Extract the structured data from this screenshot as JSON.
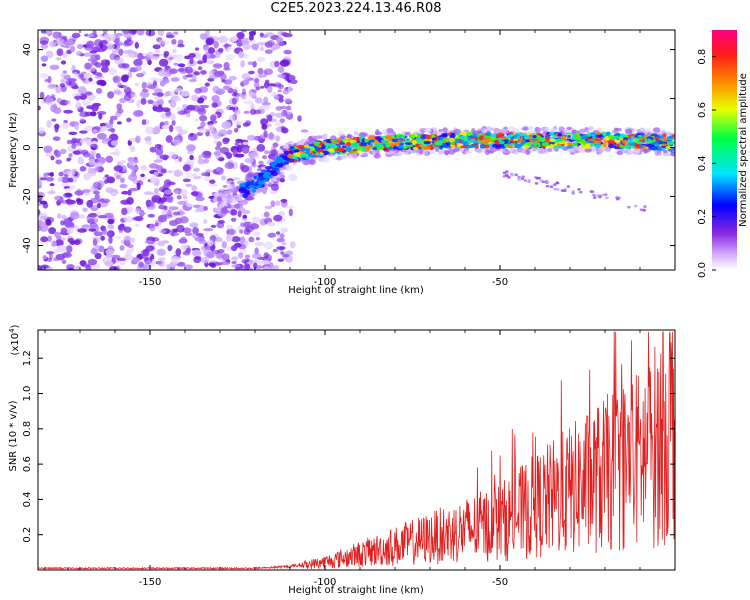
{
  "figure": {
    "title": "C2E5.2023.224.13.46.R08"
  },
  "chart_data": [
    {
      "type": "heatmap",
      "xlabel": "Height of straight line (km)",
      "ylabel": "Frequency (Hz)",
      "xlim": [
        -182,
        0
      ],
      "ylim": [
        -50,
        48
      ],
      "x_ticks": [
        -150,
        -100,
        -50
      ],
      "y_ticks": [
        -40,
        -20,
        0,
        20,
        40
      ],
      "colorscale": "rainbow",
      "colorbar": {
        "label": "Normalized spectral amplitude",
        "range": [
          0,
          0.9
        ],
        "ticks": [
          0.0,
          0.2,
          0.4,
          0.6,
          0.8
        ]
      },
      "description_values": {
        "noise_region_x": [
          -182,
          -110
        ],
        "signal_ridge": {
          "x": [
            -120,
            -110,
            -100,
            -80,
            -60,
            -40,
            -20,
            0
          ],
          "y": [
            -15,
            -3,
            0,
            2,
            3,
            3,
            3,
            2
          ]
        }
      }
    },
    {
      "type": "line",
      "xlabel": "Height of straight line (km)",
      "ylabel": "SNR (10 * v/v)",
      "multiplier_label": "(x10",
      "multiplier_exp": "4",
      "xlim": [
        -182,
        0
      ],
      "ylim": [
        0,
        1.36
      ],
      "x_ticks": [
        -150,
        -100,
        -50
      ],
      "y_ticks": [
        0.2,
        0.4,
        0.6,
        0.8,
        1.0,
        1.2
      ],
      "color": "#e02020",
      "series": [
        {
          "x": [
            -182,
            -160,
            -140,
            -120,
            -110,
            -100,
            -90,
            -80,
            -70,
            -60,
            -50,
            -40,
            -30,
            -20,
            -10,
            -5,
            0
          ],
          "y": [
            0.01,
            0.01,
            0.01,
            0.01,
            0.02,
            0.05,
            0.1,
            0.15,
            0.2,
            0.25,
            0.3,
            0.4,
            0.5,
            0.6,
            0.7,
            0.8,
            1.0
          ]
        }
      ]
    }
  ]
}
